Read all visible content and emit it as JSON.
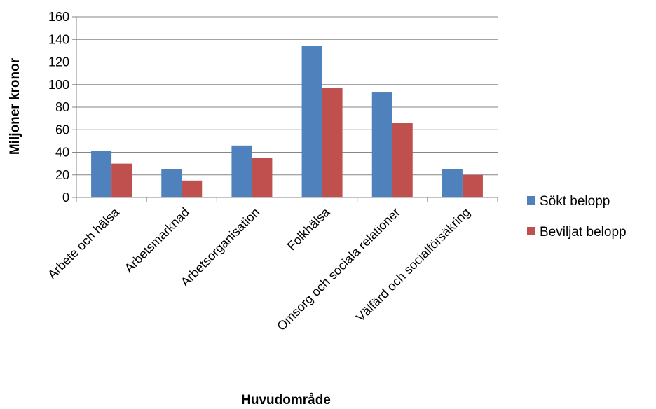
{
  "chart_data": {
    "type": "bar",
    "title": "",
    "xlabel": "Huvudområde",
    "ylabel": "Miljoner kronor",
    "ylim": [
      0,
      160
    ],
    "yticks": [
      0,
      20,
      40,
      60,
      80,
      100,
      120,
      140,
      160
    ],
    "grid": true,
    "legend_position": "right",
    "categories": [
      "Arbete och hälsa",
      "Arbetsmarknad",
      "Arbetsorganisation",
      "Folkhälsa",
      "Omsorg och sociala relationer",
      "Välfärd och socialförsäkring"
    ],
    "series": [
      {
        "name": "Sökt belopp",
        "color": "#4F81BD",
        "values": [
          41,
          25,
          46,
          134,
          93,
          25
        ]
      },
      {
        "name": "Beviljat belopp",
        "color": "#C0504D",
        "values": [
          30,
          15,
          35,
          97,
          66,
          20
        ]
      }
    ]
  }
}
